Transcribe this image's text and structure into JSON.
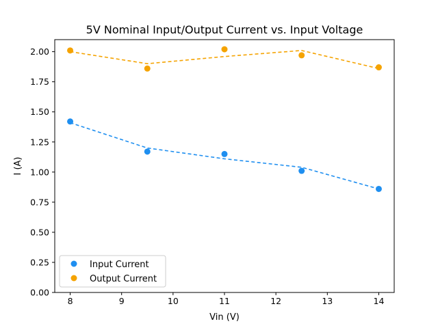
{
  "chart_data": {
    "type": "scatter",
    "title": "5V Nominal Input/Output Current vs. Input Voltage",
    "xlabel": "Vin (V)",
    "ylabel": "I (A)",
    "xlim": [
      7.7,
      14.3
    ],
    "ylim": [
      0.0,
      2.1
    ],
    "xticks": [
      8,
      9,
      10,
      11,
      12,
      13,
      14
    ],
    "xtick_labels": [
      "8",
      "9",
      "10",
      "11",
      "12",
      "13",
      "14"
    ],
    "yticks": [
      0.0,
      0.25,
      0.5,
      0.75,
      1.0,
      1.25,
      1.5,
      1.75,
      2.0
    ],
    "ytick_labels": [
      "0.00",
      "0.25",
      "0.50",
      "0.75",
      "1.00",
      "1.25",
      "1.50",
      "1.75",
      "2.00"
    ],
    "grid": false,
    "legend_position": "lower-left",
    "series": [
      {
        "name": "Input Current",
        "color": "#1f8ff0",
        "marker": "circle",
        "points": [
          [
            8,
            1.42
          ],
          [
            9.5,
            1.17
          ],
          [
            11,
            1.15
          ],
          [
            12.5,
            1.01
          ],
          [
            14,
            0.86
          ]
        ],
        "fit_line": [
          [
            8,
            1.41
          ],
          [
            9.5,
            1.2
          ],
          [
            11,
            1.11
          ],
          [
            12.5,
            1.04
          ],
          [
            14,
            0.86
          ]
        ]
      },
      {
        "name": "Output Current",
        "color": "#f5a300",
        "marker": "circle",
        "points": [
          [
            8,
            2.01
          ],
          [
            9.5,
            1.86
          ],
          [
            11,
            2.02
          ],
          [
            12.5,
            1.97
          ],
          [
            14,
            1.87
          ]
        ],
        "fit_line": [
          [
            8,
            2.0
          ],
          [
            9.5,
            1.9
          ],
          [
            11,
            1.96
          ],
          [
            12.5,
            2.01
          ],
          [
            14,
            1.86
          ]
        ]
      }
    ]
  }
}
